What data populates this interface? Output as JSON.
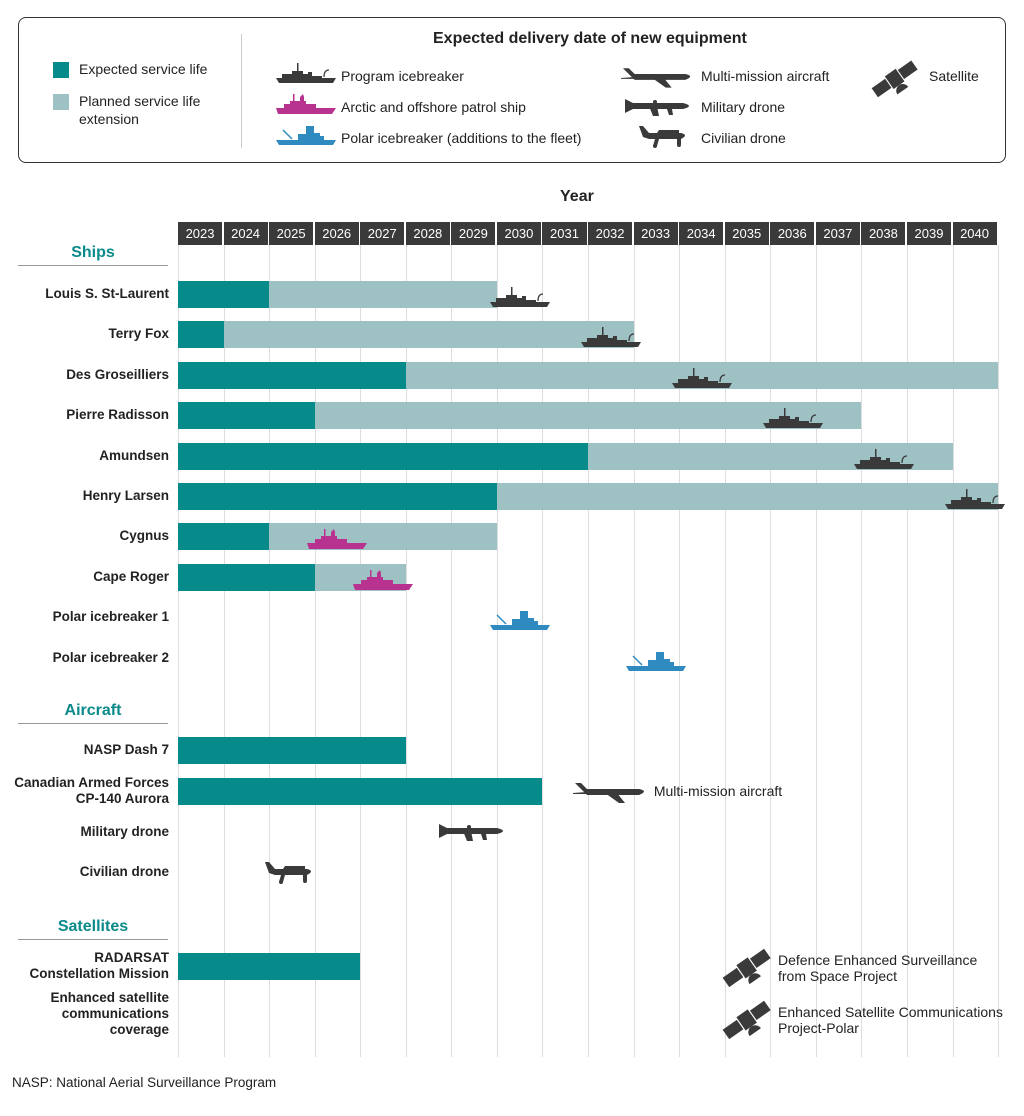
{
  "legend": {
    "service_life": "Expected service life",
    "extension": "Planned service life extension",
    "delivery_title": "Expected delivery date of new equipment",
    "program_icebreaker": "Program icebreaker",
    "patrol_ship": "Arctic and offshore patrol ship",
    "polar_icebreaker": "Polar icebreaker (additions to the fleet)",
    "multi_mission_aircraft": "Multi-mission aircraft",
    "military_drone": "Military drone",
    "civilian_drone": "Civilian drone",
    "satellite": "Satellite"
  },
  "colors": {
    "service_life": "#078a8a",
    "extension": "#9ec1c4",
    "program_icebreaker": "#3a3a3a",
    "patrol_ship": "#b8338f",
    "polar_icebreaker": "#2f8bbf",
    "header": "#3a3a3a",
    "section": "#0a8a8a"
  },
  "footnote": "NASP: National Aerial Surveillance Program",
  "chart_data": {
    "type": "gantt",
    "xlabel": "Year",
    "years": [
      "2023",
      "2024",
      "2025",
      "2026",
      "2027",
      "2028",
      "2029",
      "2030",
      "2031",
      "2032",
      "2033",
      "2034",
      "2035",
      "2036",
      "2037",
      "2038",
      "2039",
      "2040"
    ],
    "sections": [
      {
        "title": "Ships",
        "rows": [
          {
            "name": "Louis S. St-Laurent",
            "service_through": 2024,
            "extension_through": 2029,
            "delivery": {
              "year": 2030,
              "icon": "program-icebreaker"
            }
          },
          {
            "name": "Terry Fox",
            "service_through": 2023,
            "extension_through": 2032,
            "delivery": {
              "year": 2032,
              "icon": "program-icebreaker"
            }
          },
          {
            "name": "Des Groseilliers",
            "service_through": 2027,
            "extension_through": 2040,
            "delivery": {
              "year": 2034,
              "icon": "program-icebreaker"
            }
          },
          {
            "name": "Pierre Radisson",
            "service_through": 2025,
            "extension_through": 2037,
            "delivery": {
              "year": 2036,
              "icon": "program-icebreaker"
            }
          },
          {
            "name": "Amundsen",
            "service_through": 2031,
            "extension_through": 2039,
            "delivery": {
              "year": 2038,
              "icon": "program-icebreaker"
            }
          },
          {
            "name": "Henry Larsen",
            "service_through": 2029,
            "extension_through": 2040,
            "delivery": {
              "year": 2040,
              "icon": "program-icebreaker"
            }
          },
          {
            "name": "Cygnus",
            "service_through": 2024,
            "extension_through": 2029,
            "delivery": {
              "year": 2026,
              "icon": "patrol-ship"
            }
          },
          {
            "name": "Cape Roger",
            "service_through": 2025,
            "extension_through": 2027,
            "delivery": {
              "year": 2027,
              "icon": "patrol-ship"
            }
          },
          {
            "name": "Polar icebreaker 1",
            "delivery": {
              "year": 2030,
              "icon": "polar-icebreaker"
            }
          },
          {
            "name": "Polar icebreaker 2",
            "delivery": {
              "year": 2033,
              "icon": "polar-icebreaker"
            }
          }
        ]
      },
      {
        "title": "Aircraft",
        "rows": [
          {
            "name": "NASP Dash 7",
            "service_through": 2027
          },
          {
            "name": "Canadian Armed Forces\nCP-140 Aurora",
            "service_through": 2030,
            "delivery": {
              "year": 2032,
              "icon": "aircraft",
              "label": "Multi-mission aircraft"
            }
          },
          {
            "name": "Military drone",
            "delivery": {
              "year": 2029,
              "icon": "military-drone"
            }
          },
          {
            "name": "Civilian drone",
            "delivery": {
              "year": 2025,
              "icon": "civilian-drone"
            }
          }
        ]
      },
      {
        "title": "Satellites",
        "rows": [
          {
            "name": "RADARSAT\nConstellation Mission",
            "service_through": 2026,
            "delivery": {
              "year": 2035,
              "icon": "satellite",
              "label": "Defence Enhanced Surveillance\nfrom Space Project"
            }
          },
          {
            "name": "Enhanced satellite\ncommunications\ncoverage",
            "delivery": {
              "year": 2035,
              "icon": "satellite",
              "label": "Enhanced Satellite Communications\nProject-Polar"
            }
          }
        ]
      }
    ]
  }
}
